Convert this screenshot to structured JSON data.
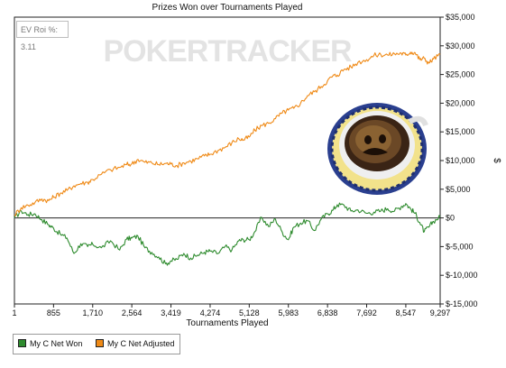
{
  "chart_data": {
    "type": "line",
    "title": "Prizes Won over Tournaments Played",
    "xlabel": "Tournaments Played",
    "ylabel": "$",
    "xlim": [
      1,
      9297
    ],
    "ylim": [
      -15000,
      35000
    ],
    "x_ticks": [
      "1",
      "855",
      "1,710",
      "2,564",
      "3,419",
      "4,274",
      "5,128",
      "5,983",
      "6,838",
      "7,692",
      "8,547",
      "9,297"
    ],
    "x_tick_values": [
      1,
      855,
      1710,
      2564,
      3419,
      4274,
      5128,
      5983,
      6838,
      7692,
      8547,
      9297
    ],
    "y_ticks": [
      {
        "value": 35000,
        "label": "$35,000"
      },
      {
        "value": 30000,
        "label": "$30,000"
      },
      {
        "value": 25000,
        "label": "$25,000"
      },
      {
        "value": 20000,
        "label": "$20,000"
      },
      {
        "value": 15000,
        "label": "$15,000"
      },
      {
        "value": 10000,
        "label": "$10,000"
      },
      {
        "value": 5000,
        "label": "$5,000"
      },
      {
        "value": 0,
        "label": "$0"
      },
      {
        "value": -5000,
        "label": "$-5,000"
      },
      {
        "value": -10000,
        "label": "$-10,000"
      },
      {
        "value": -15000,
        "label": "$-15,000"
      }
    ],
    "grid": false,
    "legend_position": "bottom-left",
    "series": [
      {
        "name": "My C Net Won",
        "color": "#2e8b2e",
        "points": [
          [
            1,
            0
          ],
          [
            150,
            1200
          ],
          [
            300,
            600
          ],
          [
            450,
            700
          ],
          [
            600,
            -300
          ],
          [
            750,
            -1200
          ],
          [
            855,
            -1800
          ],
          [
            1000,
            -2800
          ],
          [
            1150,
            -3500
          ],
          [
            1300,
            -6200
          ],
          [
            1450,
            -4500
          ],
          [
            1600,
            -5000
          ],
          [
            1710,
            -4600
          ],
          [
            1900,
            -5200
          ],
          [
            2100,
            -4000
          ],
          [
            2300,
            -5600
          ],
          [
            2450,
            -3700
          ],
          [
            2564,
            -3500
          ],
          [
            2700,
            -3200
          ],
          [
            2850,
            -5200
          ],
          [
            3000,
            -6000
          ],
          [
            3150,
            -6800
          ],
          [
            3300,
            -8000
          ],
          [
            3419,
            -7500
          ],
          [
            3550,
            -7200
          ],
          [
            3700,
            -6200
          ],
          [
            3850,
            -7000
          ],
          [
            4000,
            -6500
          ],
          [
            4150,
            -6000
          ],
          [
            4274,
            -5800
          ],
          [
            4450,
            -6200
          ],
          [
            4600,
            -5000
          ],
          [
            4750,
            -5600
          ],
          [
            4900,
            -4000
          ],
          [
            5000,
            -3800
          ],
          [
            5128,
            -3800
          ],
          [
            5250,
            -2400
          ],
          [
            5400,
            100
          ],
          [
            5550,
            -1500
          ],
          [
            5700,
            -200
          ],
          [
            5850,
            -2500
          ],
          [
            5983,
            -3800
          ],
          [
            6100,
            -1600
          ],
          [
            6250,
            -900
          ],
          [
            6400,
            -500
          ],
          [
            6550,
            -2200
          ],
          [
            6700,
            -200
          ],
          [
            6838,
            700
          ],
          [
            6950,
            1300
          ],
          [
            7050,
            2300
          ],
          [
            7200,
            2200
          ],
          [
            7350,
            1200
          ],
          [
            7500,
            1400
          ],
          [
            7692,
            800
          ],
          [
            7850,
            1000
          ],
          [
            8000,
            1200
          ],
          [
            8150,
            1600
          ],
          [
            8300,
            1200
          ],
          [
            8450,
            2000
          ],
          [
            8547,
            2500
          ],
          [
            8650,
            1600
          ],
          [
            8750,
            800
          ],
          [
            8850,
            -800
          ],
          [
            8950,
            -2400
          ],
          [
            9050,
            -1600
          ],
          [
            9150,
            -600
          ],
          [
            9297,
            200
          ]
        ]
      },
      {
        "name": "My C Net Adjusted",
        "color": "#ef8a17",
        "points": [
          [
            1,
            500
          ],
          [
            150,
            1800
          ],
          [
            300,
            2200
          ],
          [
            450,
            2700
          ],
          [
            600,
            3300
          ],
          [
            750,
            3000
          ],
          [
            855,
            3600
          ],
          [
            1000,
            4300
          ],
          [
            1150,
            4800
          ],
          [
            1300,
            5600
          ],
          [
            1450,
            6000
          ],
          [
            1600,
            6200
          ],
          [
            1710,
            6700
          ],
          [
            1900,
            7600
          ],
          [
            2100,
            8400
          ],
          [
            2300,
            8800
          ],
          [
            2450,
            9300
          ],
          [
            2564,
            9400
          ],
          [
            2700,
            10200
          ],
          [
            2850,
            9700
          ],
          [
            3000,
            9600
          ],
          [
            3150,
            9300
          ],
          [
            3300,
            9500
          ],
          [
            3419,
            9400
          ],
          [
            3550,
            9100
          ],
          [
            3700,
            9600
          ],
          [
            3850,
            9900
          ],
          [
            4000,
            10300
          ],
          [
            4150,
            10800
          ],
          [
            4274,
            11100
          ],
          [
            4450,
            11800
          ],
          [
            4600,
            12300
          ],
          [
            4750,
            13100
          ],
          [
            4900,
            13800
          ],
          [
            5000,
            13600
          ],
          [
            5128,
            14100
          ],
          [
            5250,
            15300
          ],
          [
            5400,
            16100
          ],
          [
            5550,
            16500
          ],
          [
            5700,
            17300
          ],
          [
            5850,
            18300
          ],
          [
            5983,
            18800
          ],
          [
            6100,
            19100
          ],
          [
            6250,
            20000
          ],
          [
            6400,
            21300
          ],
          [
            6550,
            22000
          ],
          [
            6700,
            22900
          ],
          [
            6838,
            23900
          ],
          [
            6950,
            24700
          ],
          [
            7050,
            24900
          ],
          [
            7200,
            25900
          ],
          [
            7350,
            26300
          ],
          [
            7500,
            27100
          ],
          [
            7692,
            27600
          ],
          [
            7850,
            28300
          ],
          [
            8000,
            28500
          ],
          [
            8150,
            28400
          ],
          [
            8300,
            28600
          ],
          [
            8450,
            28700
          ],
          [
            8547,
            28400
          ],
          [
            8650,
            28900
          ],
          [
            8750,
            28800
          ],
          [
            8850,
            27600
          ],
          [
            8950,
            27800
          ],
          [
            9050,
            27000
          ],
          [
            9150,
            27700
          ],
          [
            9297,
            28500
          ]
        ]
      }
    ]
  },
  "ev_roi_label": "EV Roi %: 3.11",
  "watermark": "POKERTRACKER",
  "legend": [
    {
      "label": "My C Net Won",
      "color": "#2e8b2e"
    },
    {
      "label": "My C Net Adjusted",
      "color": "#ef8a17"
    }
  ]
}
